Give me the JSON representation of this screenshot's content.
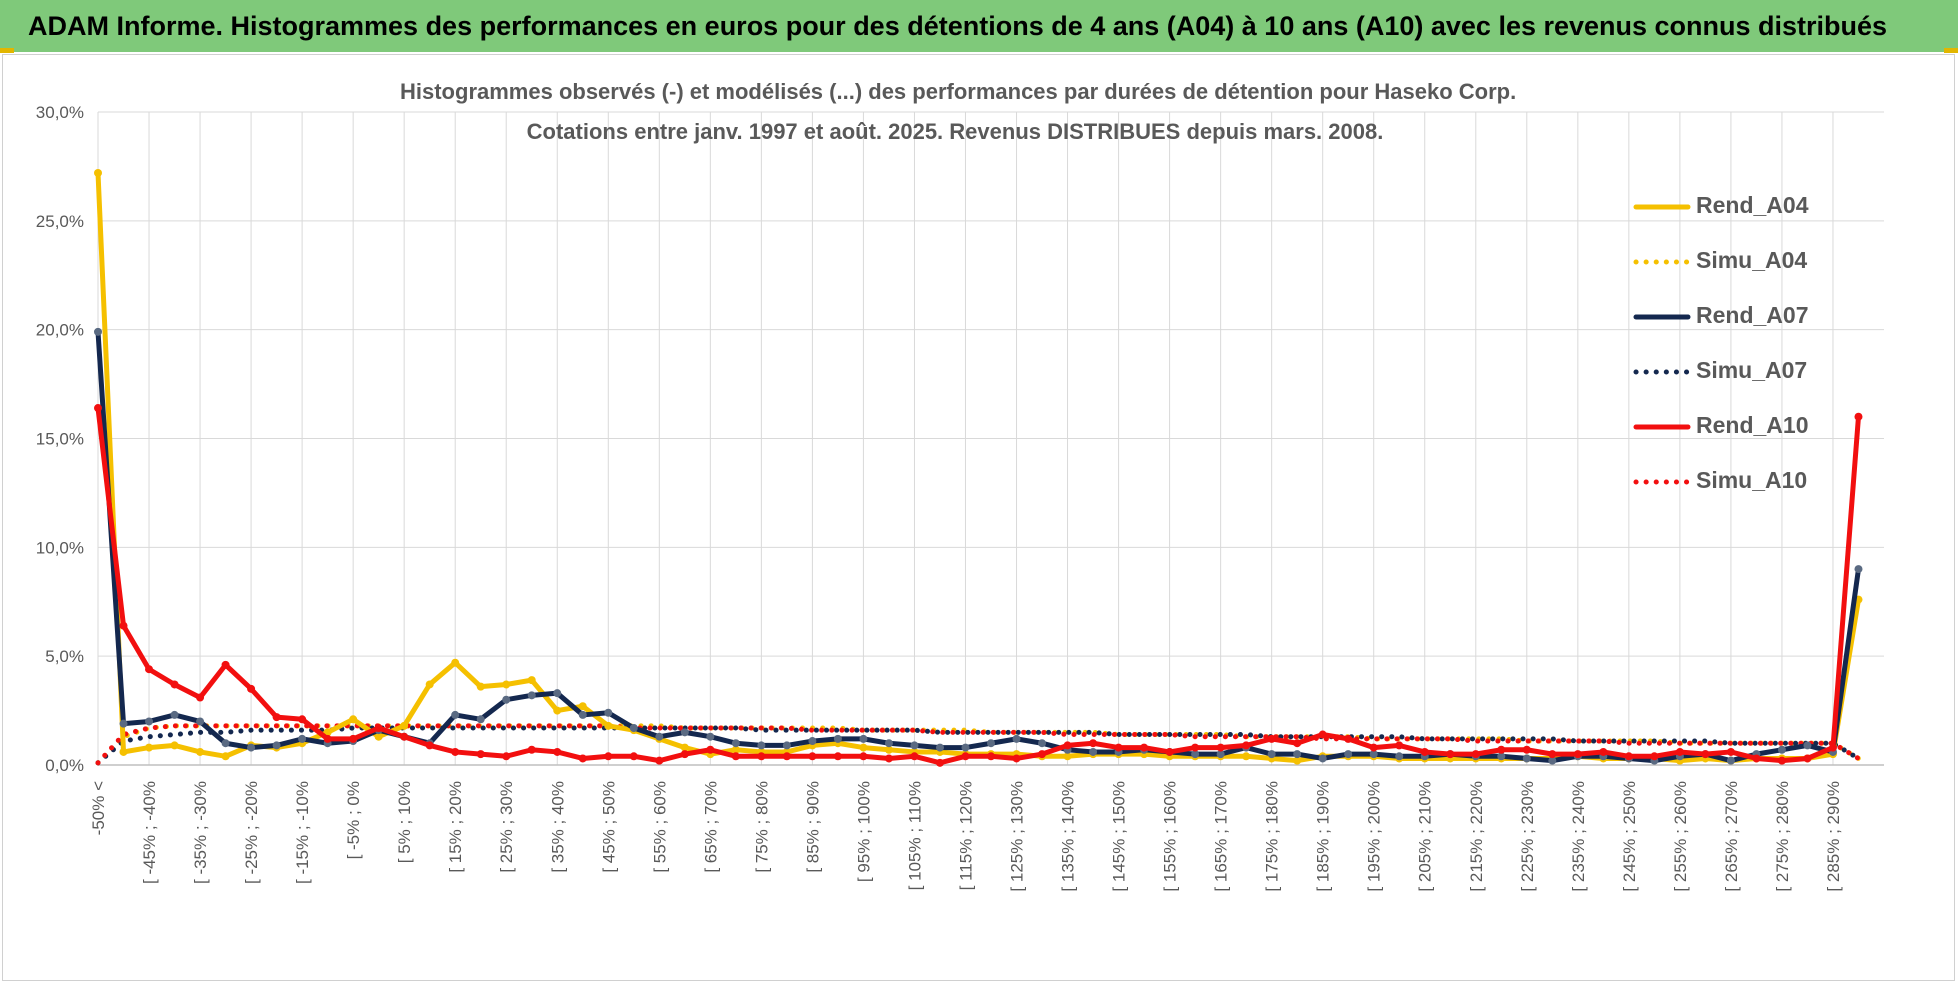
{
  "header": {
    "banner_text": "ADAM Informe. Histogrammes des performances en euros pour des détentions de 4 ans (A04) à 10 ans (A10) avec les revenus connus distribués",
    "banner_color": "#7fc97a"
  },
  "chart_data": {
    "type": "line",
    "title": "Histogrammes observés (-) et modélisés (...) des performances par durées de détention pour Haseko Corp.",
    "subtitle": "Cotations entre janv. 1997 et août. 2025. Revenus DISTRIBUES depuis mars. 2008.",
    "xlabel": "",
    "ylabel": "",
    "ylim": [
      0,
      30
    ],
    "yticks": [
      "0,0%",
      "5,0%",
      "10,0%",
      "15,0%",
      "20,0%",
      "25,0%",
      "30,0%"
    ],
    "grid": true,
    "legend_position": "right",
    "x_tick_labels": [
      "-50% <",
      "[ -45% ; -40%",
      "[ -35% ; -30%",
      "[ -25% ; -20%",
      "[ -15% ; -10%",
      "[ -5% ; 0%",
      "[ 5% ; 10%",
      "[ 15% ; 20%",
      "[ 25% ; 30%",
      "[ 35% ; 40%",
      "[ 45% ; 50%",
      "[ 55% ; 60%",
      "[ 65% ; 70%",
      "[ 75% ; 80%",
      "[ 85% ; 90%",
      "[ 95% ; 100%",
      "[ 105% ; 110%",
      "[ 115% ; 120%",
      "[ 125% ; 130%",
      "[ 135% ; 140%",
      "[ 145% ; 150%",
      "[ 155% ; 160%",
      "[ 165% ; 170%",
      "[ 175% ; 180%",
      "[ 185% ; 190%",
      "[ 195% ; 200%",
      "[ 205% ; 210%",
      "[ 215% ; 220%",
      "[ 225% ; 230%",
      "[ 235% ; 240%",
      "[ 245% ; 250%",
      "[ 255% ; 260%",
      "[ 265% ; 270%",
      "[ 275% ; 280%",
      "[ 285% ; 290%"
    ],
    "categories_count": 70,
    "series": [
      {
        "name": "Rend_A04",
        "color": "#f5c000",
        "style": "solid",
        "markers": true,
        "values": [
          27.2,
          0.6,
          0.8,
          0.9,
          0.6,
          0.4,
          0.9,
          0.8,
          1.0,
          1.5,
          2.1,
          1.3,
          1.8,
          3.7,
          4.7,
          3.6,
          3.7,
          3.9,
          2.5,
          2.7,
          1.8,
          1.6,
          1.2,
          0.8,
          0.5,
          0.7,
          0.6,
          0.6,
          0.9,
          1.0,
          0.8,
          0.7,
          0.6,
          0.6,
          0.5,
          0.5,
          0.5,
          0.4,
          0.4,
          0.5,
          0.5,
          0.5,
          0.4,
          0.4,
          0.4,
          0.4,
          0.3,
          0.2,
          0.4,
          0.4,
          0.4,
          0.3,
          0.3,
          0.3,
          0.3,
          0.3,
          0.3,
          0.3,
          0.4,
          0.3,
          0.3,
          0.3,
          0.2,
          0.3,
          0.2,
          0.3,
          0.3,
          0.3,
          0.5,
          7.6
        ]
      },
      {
        "name": "Simu_A04",
        "color": "#f5c000",
        "style": "dotted",
        "markers": false,
        "values": [
          0.1,
          1.3,
          1.7,
          1.8,
          1.8,
          1.8,
          1.8,
          1.8,
          1.8,
          1.8,
          1.8,
          1.8,
          1.8,
          1.8,
          1.8,
          1.8,
          1.8,
          1.8,
          1.8,
          1.8,
          1.8,
          1.8,
          1.8,
          1.7,
          1.7,
          1.7,
          1.7,
          1.7,
          1.7,
          1.7,
          1.6,
          1.6,
          1.6,
          1.6,
          1.6,
          1.5,
          1.5,
          1.5,
          1.5,
          1.5,
          1.4,
          1.4,
          1.4,
          1.4,
          1.4,
          1.3,
          1.3,
          1.3,
          1.3,
          1.3,
          1.2,
          1.2,
          1.2,
          1.2,
          1.2,
          1.2,
          1.1,
          1.1,
          1.1,
          1.1,
          1.1,
          1.1,
          1.0,
          1.0,
          1.0,
          1.0,
          1.0,
          1.0,
          1.0,
          0.3
        ]
      },
      {
        "name": "Rend_A07",
        "color": "#14284f",
        "style": "solid",
        "markers": true,
        "values": [
          19.9,
          1.9,
          2.0,
          2.3,
          2.0,
          1.0,
          0.8,
          0.9,
          1.2,
          1.0,
          1.1,
          1.6,
          1.3,
          1.0,
          2.3,
          2.1,
          3.0,
          3.2,
          3.3,
          2.3,
          2.4,
          1.7,
          1.3,
          1.5,
          1.3,
          1.0,
          0.9,
          0.9,
          1.1,
          1.2,
          1.2,
          1.0,
          0.9,
          0.8,
          0.8,
          1.0,
          1.2,
          1.0,
          0.7,
          0.6,
          0.6,
          0.7,
          0.6,
          0.5,
          0.5,
          0.8,
          0.5,
          0.5,
          0.3,
          0.5,
          0.5,
          0.4,
          0.4,
          0.5,
          0.4,
          0.4,
          0.3,
          0.2,
          0.4,
          0.4,
          0.3,
          0.2,
          0.4,
          0.5,
          0.2,
          0.5,
          0.7,
          0.9,
          0.6,
          9.0
        ]
      },
      {
        "name": "Simu_A07",
        "color": "#14284f",
        "style": "dotted",
        "markers": false,
        "values": [
          0.1,
          1.1,
          1.3,
          1.4,
          1.5,
          1.5,
          1.6,
          1.6,
          1.6,
          1.6,
          1.7,
          1.7,
          1.7,
          1.7,
          1.7,
          1.7,
          1.7,
          1.7,
          1.7,
          1.7,
          1.7,
          1.7,
          1.7,
          1.7,
          1.7,
          1.7,
          1.6,
          1.6,
          1.6,
          1.6,
          1.6,
          1.6,
          1.6,
          1.5,
          1.5,
          1.5,
          1.5,
          1.5,
          1.5,
          1.5,
          1.4,
          1.4,
          1.4,
          1.4,
          1.4,
          1.4,
          1.3,
          1.3,
          1.3,
          1.3,
          1.3,
          1.3,
          1.2,
          1.2,
          1.2,
          1.2,
          1.2,
          1.2,
          1.1,
          1.1,
          1.1,
          1.1,
          1.1,
          1.1,
          1.0,
          1.0,
          1.0,
          1.0,
          1.0,
          0.3
        ]
      },
      {
        "name": "Rend_A10",
        "color": "#f20f0f",
        "style": "solid",
        "markers": true,
        "values": [
          16.4,
          6.4,
          4.4,
          3.7,
          3.1,
          4.6,
          3.5,
          2.2,
          2.1,
          1.2,
          1.2,
          1.7,
          1.3,
          0.9,
          0.6,
          0.5,
          0.4,
          0.7,
          0.6,
          0.3,
          0.4,
          0.4,
          0.2,
          0.5,
          0.7,
          0.4,
          0.4,
          0.4,
          0.4,
          0.4,
          0.4,
          0.3,
          0.4,
          0.1,
          0.4,
          0.4,
          0.3,
          0.5,
          0.9,
          1.0,
          0.8,
          0.8,
          0.6,
          0.8,
          0.8,
          0.9,
          1.2,
          1.0,
          1.4,
          1.2,
          0.8,
          0.9,
          0.6,
          0.5,
          0.5,
          0.7,
          0.7,
          0.5,
          0.5,
          0.6,
          0.4,
          0.4,
          0.6,
          0.5,
          0.6,
          0.3,
          0.2,
          0.3,
          0.8,
          16.0
        ]
      },
      {
        "name": "Simu_A10",
        "color": "#f20f0f",
        "style": "dotted",
        "markers": false,
        "values": [
          0.1,
          1.4,
          1.7,
          1.8,
          1.8,
          1.8,
          1.8,
          1.8,
          1.8,
          1.8,
          1.8,
          1.8,
          1.8,
          1.8,
          1.8,
          1.8,
          1.8,
          1.8,
          1.8,
          1.8,
          1.8,
          1.7,
          1.7,
          1.7,
          1.7,
          1.7,
          1.7,
          1.7,
          1.6,
          1.6,
          1.6,
          1.6,
          1.6,
          1.5,
          1.5,
          1.5,
          1.5,
          1.5,
          1.4,
          1.4,
          1.4,
          1.4,
          1.4,
          1.3,
          1.3,
          1.3,
          1.3,
          1.3,
          1.2,
          1.2,
          1.2,
          1.2,
          1.2,
          1.2,
          1.1,
          1.1,
          1.1,
          1.1,
          1.1,
          1.1,
          1.0,
          1.0,
          1.0,
          1.0,
          1.0,
          1.0,
          1.0,
          1.0,
          1.0,
          0.3
        ]
      }
    ]
  }
}
